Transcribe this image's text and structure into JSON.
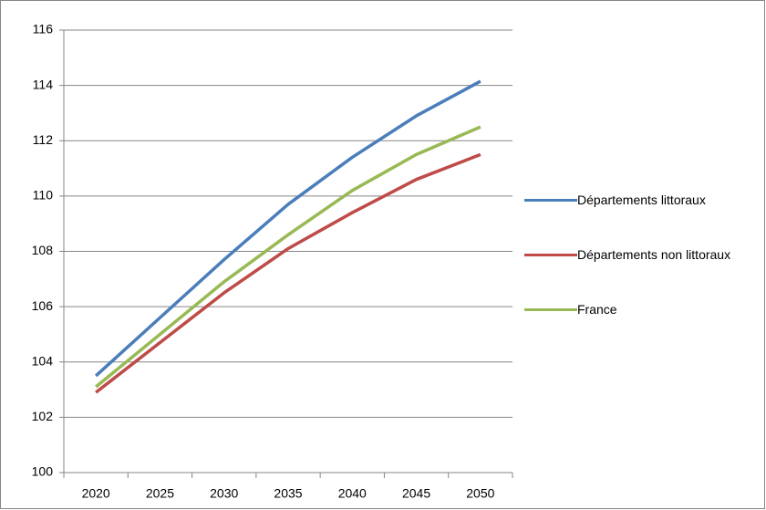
{
  "chart_data": {
    "type": "line",
    "categories": [
      "2020",
      "2025",
      "2030",
      "2035",
      "2040",
      "2045",
      "2050"
    ],
    "series": [
      {
        "name": "Départements littoraux",
        "color": "#4a7ebb",
        "values": [
          103.5,
          105.6,
          107.7,
          109.7,
          111.4,
          112.9,
          114.15
        ]
      },
      {
        "name": "Départements non littoraux",
        "color": "#be4b48",
        "values": [
          102.9,
          104.7,
          106.5,
          108.1,
          109.4,
          110.6,
          111.5
        ]
      },
      {
        "name": "France",
        "color": "#98b954",
        "values": [
          103.1,
          105.0,
          106.9,
          108.6,
          110.2,
          111.5,
          112.5
        ]
      }
    ],
    "ylim": [
      100,
      116
    ],
    "yticks": [
      100,
      102,
      104,
      106,
      108,
      110,
      112,
      114,
      116
    ],
    "grid": true,
    "legend": "right"
  }
}
